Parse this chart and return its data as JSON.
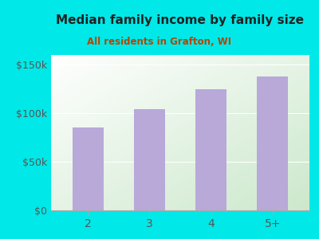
{
  "title": "Median family income by family size",
  "subtitle": "All residents in Grafton, WI",
  "categories": [
    "2",
    "3",
    "4",
    "5+"
  ],
  "values": [
    85000,
    104000,
    125000,
    138000
  ],
  "bar_color": "#b8a9d9",
  "title_color": "#222222",
  "subtitle_color": "#b84400",
  "bg_color": "#00e8e8",
  "plot_bg_top_left": "#ffffff",
  "plot_bg_bottom_right": "#cce8cc",
  "ylim": [
    0,
    160000
  ],
  "yticks": [
    0,
    50000,
    100000,
    150000
  ],
  "ylabel_fmt": [
    "$0",
    "$50k",
    "$100k",
    "$150k"
  ],
  "tick_color": "#555555",
  "axis_color": "#aaaaaa",
  "title_fontsize": 11,
  "subtitle_fontsize": 8.5,
  "tick_fontsize": 9,
  "bar_width": 0.5
}
